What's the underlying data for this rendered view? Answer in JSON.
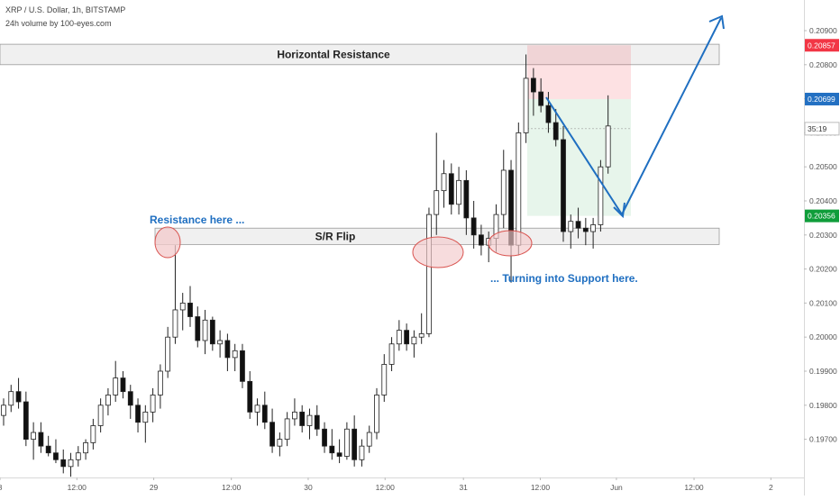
{
  "header": {
    "title": "XRP / U.S. Dollar, 1h, BITSTAMP",
    "volume": "24h volume by 100-eyes.com"
  },
  "colors": {
    "accent": "#1f6fc1",
    "ellipse_fill": "#f3c9cb",
    "ellipse_stroke": "#d9534f",
    "zone_fill": "#f0f0f0",
    "zone_stroke": "#9a9a9a",
    "target_red": "#f23645",
    "target_blue": "#2370c2",
    "target_green": "#0f9d3a"
  },
  "chart_data": {
    "type": "candlestick",
    "symbol": "XRP / U.S. Dollar",
    "timeframe": "1h",
    "exchange": "BITSTAMP",
    "y_ticks": [
      "0.20900",
      "0.20800",
      "0.20700",
      "0.20600",
      "0.20500",
      "0.20400",
      "0.20300",
      "0.20200",
      "0.20100",
      "0.20000",
      "0.19900",
      "0.19800",
      "0.19700"
    ],
    "x_ticks": [
      {
        "label": "8",
        "t": 0
      },
      {
        "label": "12:00",
        "t": 10.3
      },
      {
        "label": "29",
        "t": 20.6
      },
      {
        "label": "12:00",
        "t": 31.0
      },
      {
        "label": "30",
        "t": 41.3
      },
      {
        "label": "12:00",
        "t": 51.6
      },
      {
        "label": "31",
        "t": 62.1
      },
      {
        "label": "12:00",
        "t": 72.4
      },
      {
        "label": "Jun",
        "t": 82.6
      },
      {
        "label": "12:00",
        "t": 93.0
      },
      {
        "label": "2",
        "t": 103.3
      }
    ],
    "price_tags": [
      {
        "label": "0.20857",
        "value": 0.20857,
        "kind": "red"
      },
      {
        "label": "0.20699",
        "value": 0.20699,
        "kind": "blue"
      },
      {
        "label": "35:19",
        "value": 0.20612,
        "kind": "timer"
      },
      {
        "label": "0.20356",
        "value": 0.20356,
        "kind": "green"
      }
    ],
    "candles": [
      [
        0.1977,
        0.1982,
        0.1974,
        0.198
      ],
      [
        0.198,
        0.1986,
        0.1978,
        0.1984
      ],
      [
        0.1984,
        0.1988,
        0.1979,
        0.1981
      ],
      [
        0.1981,
        0.1984,
        0.1968,
        0.197
      ],
      [
        0.197,
        0.1975,
        0.1964,
        0.1972
      ],
      [
        0.1972,
        0.1975,
        0.1966,
        0.1968
      ],
      [
        0.1968,
        0.1971,
        0.1965,
        0.1966
      ],
      [
        0.1966,
        0.197,
        0.1963,
        0.1964
      ],
      [
        0.1964,
        0.1967,
        0.196,
        0.1962
      ],
      [
        0.1962,
        0.1966,
        0.1959,
        0.1964
      ],
      [
        0.1964,
        0.1968,
        0.1962,
        0.1966
      ],
      [
        0.1966,
        0.197,
        0.1964,
        0.1969
      ],
      [
        0.1969,
        0.1976,
        0.1967,
        0.1974
      ],
      [
        0.1974,
        0.1982,
        0.1972,
        0.198
      ],
      [
        0.198,
        0.1985,
        0.1977,
        0.1983
      ],
      [
        0.1983,
        0.1993,
        0.1981,
        0.1988
      ],
      [
        0.1988,
        0.199,
        0.1982,
        0.1984
      ],
      [
        0.1984,
        0.1986,
        0.1976,
        0.198
      ],
      [
        0.198,
        0.1982,
        0.1972,
        0.1975
      ],
      [
        0.1975,
        0.198,
        0.1969,
        0.1978
      ],
      [
        0.1978,
        0.1985,
        0.1975,
        0.1983
      ],
      [
        0.1983,
        0.1992,
        0.1979,
        0.199
      ],
      [
        0.199,
        0.2003,
        0.1988,
        0.2
      ],
      [
        0.2,
        0.2027,
        0.1998,
        0.2008
      ],
      [
        0.2008,
        0.2013,
        0.2002,
        0.201
      ],
      [
        0.201,
        0.2015,
        0.2003,
        0.2006
      ],
      [
        0.2006,
        0.2009,
        0.1997,
        0.1999
      ],
      [
        0.1999,
        0.2008,
        0.1995,
        0.2005
      ],
      [
        0.2005,
        0.2006,
        0.1996,
        0.1998
      ],
      [
        0.1998,
        0.2002,
        0.1994,
        0.1999
      ],
      [
        0.1999,
        0.2001,
        0.199,
        0.1994
      ],
      [
        0.1994,
        0.1998,
        0.199,
        0.1996
      ],
      [
        0.1996,
        0.1998,
        0.1985,
        0.1987
      ],
      [
        0.1987,
        0.199,
        0.1976,
        0.1978
      ],
      [
        0.1978,
        0.1982,
        0.1974,
        0.198
      ],
      [
        0.198,
        0.1984,
        0.1973,
        0.1975
      ],
      [
        0.1975,
        0.1979,
        0.1966,
        0.1968
      ],
      [
        0.1968,
        0.1972,
        0.1965,
        0.197
      ],
      [
        0.197,
        0.1978,
        0.1968,
        0.1976
      ],
      [
        0.1976,
        0.1982,
        0.1974,
        0.1978
      ],
      [
        0.1978,
        0.198,
        0.1972,
        0.1974
      ],
      [
        0.1974,
        0.1979,
        0.197,
        0.1977
      ],
      [
        0.1977,
        0.198,
        0.1971,
        0.1973
      ],
      [
        0.1973,
        0.1975,
        0.1966,
        0.1968
      ],
      [
        0.1968,
        0.1973,
        0.1964,
        0.1966
      ],
      [
        0.1966,
        0.197,
        0.1963,
        0.1965
      ],
      [
        0.1965,
        0.1975,
        0.1964,
        0.1973
      ],
      [
        0.1973,
        0.1977,
        0.1962,
        0.1964
      ],
      [
        0.1964,
        0.197,
        0.1962,
        0.1968
      ],
      [
        0.1968,
        0.1974,
        0.1966,
        0.1972
      ],
      [
        0.1972,
        0.1985,
        0.197,
        0.1983
      ],
      [
        0.1983,
        0.1995,
        0.1981,
        0.1992
      ],
      [
        0.1992,
        0.2,
        0.199,
        0.1998
      ],
      [
        0.1998,
        0.2005,
        0.1996,
        0.2002
      ],
      [
        0.2002,
        0.2004,
        0.1996,
        0.1998
      ],
      [
        0.1998,
        0.2002,
        0.1994,
        0.2
      ],
      [
        0.2,
        0.2007,
        0.1998,
        0.2001
      ],
      [
        0.2001,
        0.2038,
        0.2,
        0.2036
      ],
      [
        0.2036,
        0.206,
        0.203,
        0.2043
      ],
      [
        0.2043,
        0.2052,
        0.2038,
        0.2048
      ],
      [
        0.2048,
        0.2051,
        0.2036,
        0.2039
      ],
      [
        0.2039,
        0.205,
        0.2036,
        0.2046
      ],
      [
        0.2046,
        0.2049,
        0.203,
        0.2035
      ],
      [
        0.2035,
        0.204,
        0.2026,
        0.203
      ],
      [
        0.203,
        0.2033,
        0.2024,
        0.2027
      ],
      [
        0.2027,
        0.2031,
        0.2022,
        0.2029
      ],
      [
        0.2029,
        0.2039,
        0.2025,
        0.2036
      ],
      [
        0.2036,
        0.2055,
        0.2032,
        0.2049
      ],
      [
        0.2049,
        0.2052,
        0.2016,
        0.2027
      ],
      [
        0.2027,
        0.2063,
        0.2024,
        0.206
      ],
      [
        0.206,
        0.2083,
        0.2057,
        0.2076
      ],
      [
        0.2076,
        0.2079,
        0.2065,
        0.2072
      ],
      [
        0.2072,
        0.2076,
        0.2066,
        0.2068
      ],
      [
        0.2068,
        0.2072,
        0.206,
        0.2063
      ],
      [
        0.2063,
        0.2067,
        0.2056,
        0.2058
      ],
      [
        0.2058,
        0.2062,
        0.2028,
        0.2031
      ],
      [
        0.2031,
        0.2036,
        0.2026,
        0.2034
      ],
      [
        0.2034,
        0.2038,
        0.2029,
        0.2032
      ],
      [
        0.2032,
        0.2035,
        0.2027,
        0.2031
      ],
      [
        0.2031,
        0.2035,
        0.2026,
        0.2033
      ],
      [
        0.2033,
        0.2052,
        0.2031,
        0.205
      ],
      [
        0.205,
        0.2071,
        0.2048,
        0.2062
      ]
    ],
    "zones": [
      {
        "label": "Horizontal Resistance",
        "from": 0.208,
        "to": 0.2086
      },
      {
        "label": "S/R Flip",
        "from": 0.20272,
        "to": 0.2032
      }
    ],
    "position": {
      "entry": 0.20699,
      "stop": 0.20857,
      "target": 0.20356
    },
    "annotations": [
      {
        "text": "Resistance here ...",
        "value": 0.20345
      },
      {
        "text": "... Turning into Support here.",
        "value": 0.2021
      }
    ]
  }
}
